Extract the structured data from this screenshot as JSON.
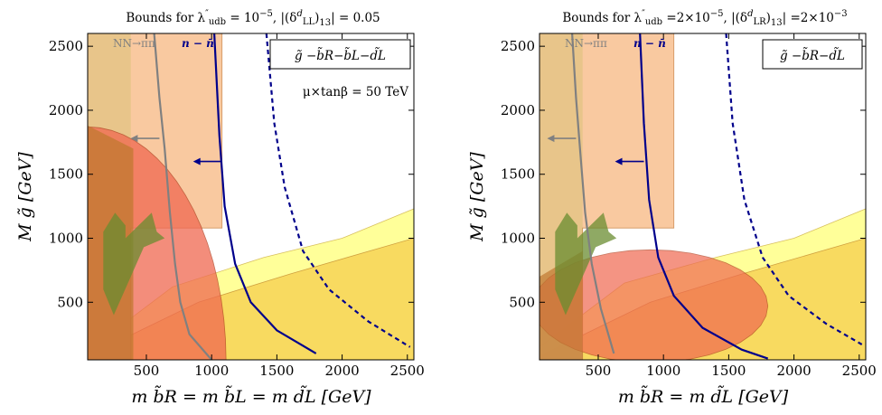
{
  "panels": [
    {
      "title": "Bounds for λ″udb = 10⁻⁵,  |(δᵈLL)13| = 0.05",
      "title_parts": {
        "pre": "Bounds for λ",
        "sup": "″",
        "sub": "udb",
        "post": " = 10",
        "exp": "−5",
        "mid": ",  |(δ",
        "dsup": "d",
        "dsub": "LL",
        "end": ")",
        "idx": "13",
        "tail": "| = 0.05"
      },
      "legend": "g̃ −b̃R−b̃L−d̃L",
      "annotation": "μ×tanβ = 50 TeV",
      "nn_label": "NN→ππ",
      "nnbar_label": "n − n̄",
      "xlabel": "m b̃R = m b̃L = m d̃L  [GeV]",
      "ylabel": "M g̃  [GeV]"
    },
    {
      "title": "Bounds for λ″udb =2×10⁻⁵,  |(δᵈLR)13| =2×10⁻³",
      "title_parts": {
        "pre": "Bounds for λ",
        "sup": "″",
        "sub": "udb",
        "post": " =2×10",
        "exp": "−5",
        "mid": ",  |(δ",
        "dsup": "d",
        "dsub": "LR",
        "end": ")",
        "idx": "13",
        "tail": "| =2×10",
        "tailexp": "−3"
      },
      "legend": "g̃ −b̃R−d̃L",
      "annotation": "",
      "nn_label": "NN→ππ",
      "nnbar_label": "n − n̄",
      "xlabel": "m b̃R = m d̃L  [GeV]",
      "ylabel": "M g̃  [GeV]"
    }
  ],
  "axis_labels": {
    "x_main": "m",
    "x_unit": "[GeV]",
    "y_main": "M",
    "y_unit": "[GeV]"
  },
  "chart_data": [
    {
      "type": "area",
      "title": "Bounds for λ″udb = 10⁻⁵, |(δᵈLL)13| = 0.05",
      "xlabel": "m_b̃R = m_b̃L = m_d̃L [GeV]",
      "ylabel": "M_g̃ [GeV]",
      "xlim": [
        50,
        2550
      ],
      "ylim": [
        50,
        2600
      ],
      "x_ticks": [
        500,
        1000,
        1500,
        2000,
        2500
      ],
      "y_ticks": [
        500,
        1000,
        1500,
        2000,
        2500
      ],
      "legend": "g̃ −b̃R−b̃L−d̃L",
      "annotations": [
        "μ×tanβ = 50 TeV",
        "NN→ππ",
        "n − n̄"
      ],
      "series": [
        {
          "name": "NN→ππ",
          "role": "boundary",
          "color": "#808080",
          "x": [
            560,
            600,
            640,
            680,
            720,
            760,
            830,
            1000
          ],
          "y": [
            2600,
            2100,
            1700,
            1200,
            800,
            500,
            250,
            50
          ]
        },
        {
          "name": "n − n̄",
          "role": "boundary",
          "color": "#00008b",
          "x": [
            1020,
            1060,
            1100,
            1180,
            1300,
            1500,
            1800
          ],
          "y": [
            2600,
            1800,
            1250,
            800,
            500,
            280,
            100
          ]
        },
        {
          "role": "dashed boundary",
          "color": "#00008b",
          "x": [
            1420,
            1480,
            1560,
            1700,
            1900,
            2200,
            2520
          ],
          "y": [
            2600,
            1900,
            1400,
            900,
            600,
            350,
            150
          ]
        }
      ]
    },
    {
      "type": "area",
      "title": "Bounds for λ″udb =2×10⁻⁵, |(δᵈLR)13| =2×10⁻³",
      "xlabel": "m_b̃R = m_d̃L [GeV]",
      "ylabel": "M_g̃ [GeV]",
      "xlim": [
        50,
        2550
      ],
      "ylim": [
        50,
        2600
      ],
      "x_ticks": [
        500,
        1000,
        1500,
        2000,
        2500
      ],
      "y_ticks": [
        500,
        1000,
        1500,
        2000,
        2500
      ],
      "legend": "g̃ −b̃R−d̃L",
      "annotations": [
        "NN→ππ",
        "n − n̄"
      ],
      "series": [
        {
          "name": "NN→ππ",
          "role": "boundary",
          "color": "#808080",
          "x": [
            300,
            330,
            360,
            400,
            450,
            520,
            620
          ],
          "y": [
            2600,
            2100,
            1700,
            1200,
            800,
            450,
            100
          ]
        },
        {
          "name": "n − n̄",
          "role": "boundary",
          "color": "#00008b",
          "x": [
            820,
            850,
            890,
            960,
            1080,
            1300,
            1600,
            1800
          ],
          "y": [
            2600,
            1900,
            1300,
            850,
            550,
            300,
            130,
            60
          ]
        },
        {
          "role": "dashed boundary",
          "color": "#00008b",
          "x": [
            1480,
            1530,
            1620,
            1760,
            1960,
            2250,
            2520
          ],
          "y": [
            2600,
            1900,
            1300,
            850,
            550,
            330,
            170
          ]
        }
      ]
    }
  ],
  "colors": {
    "green": "#88e060",
    "orange": "#f8c090",
    "yellow_light": "#ffff99",
    "yellow_dark": "#f8da60",
    "red": "#f06850",
    "brown": "#c07830",
    "olive": "#6a8c30",
    "boundary_blue": "#00008b",
    "boundary_gray": "#808080"
  }
}
